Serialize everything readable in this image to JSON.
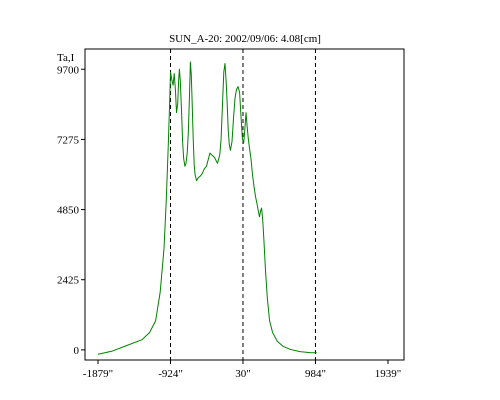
{
  "chart_data": {
    "type": "line",
    "title": "SUN_A-20: 2002/09/06: 4.08[cm]",
    "ylabel": "Ta,I",
    "xlabel": "",
    "xlim": [
      -2050,
      2150
    ],
    "ylim": [
      -350,
      10400
    ],
    "x_tick_labels": [
      {
        "value": -1879,
        "label": "-1879\""
      },
      {
        "value": -924,
        "label": "-924\""
      },
      {
        "value": 30,
        "label": "30\""
      },
      {
        "value": 984,
        "label": "984\""
      },
      {
        "value": 1939,
        "label": "1939\""
      }
    ],
    "y_tick_labels": [
      {
        "value": 0,
        "label": "0"
      },
      {
        "value": 2425,
        "label": "2425"
      },
      {
        "value": 4850,
        "label": "4850"
      },
      {
        "value": 7275,
        "label": "7275"
      },
      {
        "value": 9700,
        "label": "9700"
      }
    ],
    "reference_lines_x": [
      -924,
      30,
      984
    ],
    "series": [
      {
        "color": "#008000",
        "points": [
          [
            -1879,
            -150
          ],
          [
            -1700,
            -50
          ],
          [
            -1500,
            150
          ],
          [
            -1300,
            350
          ],
          [
            -1200,
            600
          ],
          [
            -1120,
            1000
          ],
          [
            -1060,
            2000
          ],
          [
            -1010,
            3500
          ],
          [
            -980,
            5200
          ],
          [
            -955,
            7000
          ],
          [
            -935,
            8600
          ],
          [
            -924,
            9600
          ],
          [
            -905,
            9300
          ],
          [
            -890,
            9150
          ],
          [
            -875,
            9550
          ],
          [
            -860,
            9000
          ],
          [
            -845,
            8200
          ],
          [
            -830,
            8500
          ],
          [
            -818,
            9300
          ],
          [
            -807,
            9700
          ],
          [
            -795,
            9300
          ],
          [
            -780,
            8300
          ],
          [
            -765,
            7200
          ],
          [
            -750,
            6600
          ],
          [
            -735,
            6350
          ],
          [
            -720,
            6450
          ],
          [
            -705,
            6800
          ],
          [
            -690,
            7500
          ],
          [
            -675,
            8700
          ],
          [
            -662,
            9950
          ],
          [
            -650,
            9500
          ],
          [
            -638,
            8500
          ],
          [
            -625,
            7300
          ],
          [
            -612,
            6400
          ],
          [
            -600,
            6050
          ],
          [
            -580,
            5850
          ],
          [
            -560,
            5950
          ],
          [
            -535,
            6000
          ],
          [
            -505,
            6100
          ],
          [
            -480,
            6250
          ],
          [
            -450,
            6350
          ],
          [
            -425,
            6600
          ],
          [
            -405,
            6800
          ],
          [
            -385,
            6750
          ],
          [
            -365,
            6700
          ],
          [
            -345,
            6650
          ],
          [
            -325,
            6550
          ],
          [
            -305,
            6450
          ],
          [
            -290,
            6600
          ],
          [
            -275,
            6750
          ],
          [
            -258,
            7300
          ],
          [
            -240,
            8500
          ],
          [
            -222,
            9600
          ],
          [
            -207,
            9900
          ],
          [
            -192,
            9300
          ],
          [
            -178,
            8500
          ],
          [
            -165,
            7600
          ],
          [
            -150,
            7100
          ],
          [
            -135,
            6900
          ],
          [
            -115,
            7200
          ],
          [
            -95,
            8000
          ],
          [
            -75,
            8700
          ],
          [
            -55,
            9000
          ],
          [
            -35,
            9100
          ],
          [
            -15,
            8900
          ],
          [
            5,
            8000
          ],
          [
            22,
            7300
          ],
          [
            40,
            7150
          ],
          [
            55,
            7650
          ],
          [
            70,
            8200
          ],
          [
            85,
            7700
          ],
          [
            100,
            7300
          ],
          [
            115,
            7000
          ],
          [
            135,
            6600
          ],
          [
            155,
            6050
          ],
          [
            175,
            5650
          ],
          [
            195,
            5300
          ],
          [
            215,
            5050
          ],
          [
            235,
            4750
          ],
          [
            248,
            4600
          ],
          [
            262,
            4800
          ],
          [
            275,
            4900
          ],
          [
            290,
            4500
          ],
          [
            305,
            3800
          ],
          [
            325,
            2800
          ],
          [
            350,
            1800
          ],
          [
            380,
            1000
          ],
          [
            420,
            600
          ],
          [
            480,
            300
          ],
          [
            560,
            120
          ],
          [
            650,
            20
          ],
          [
            780,
            -60
          ],
          [
            930,
            -100
          ],
          [
            1000,
            -100
          ]
        ]
      }
    ]
  }
}
